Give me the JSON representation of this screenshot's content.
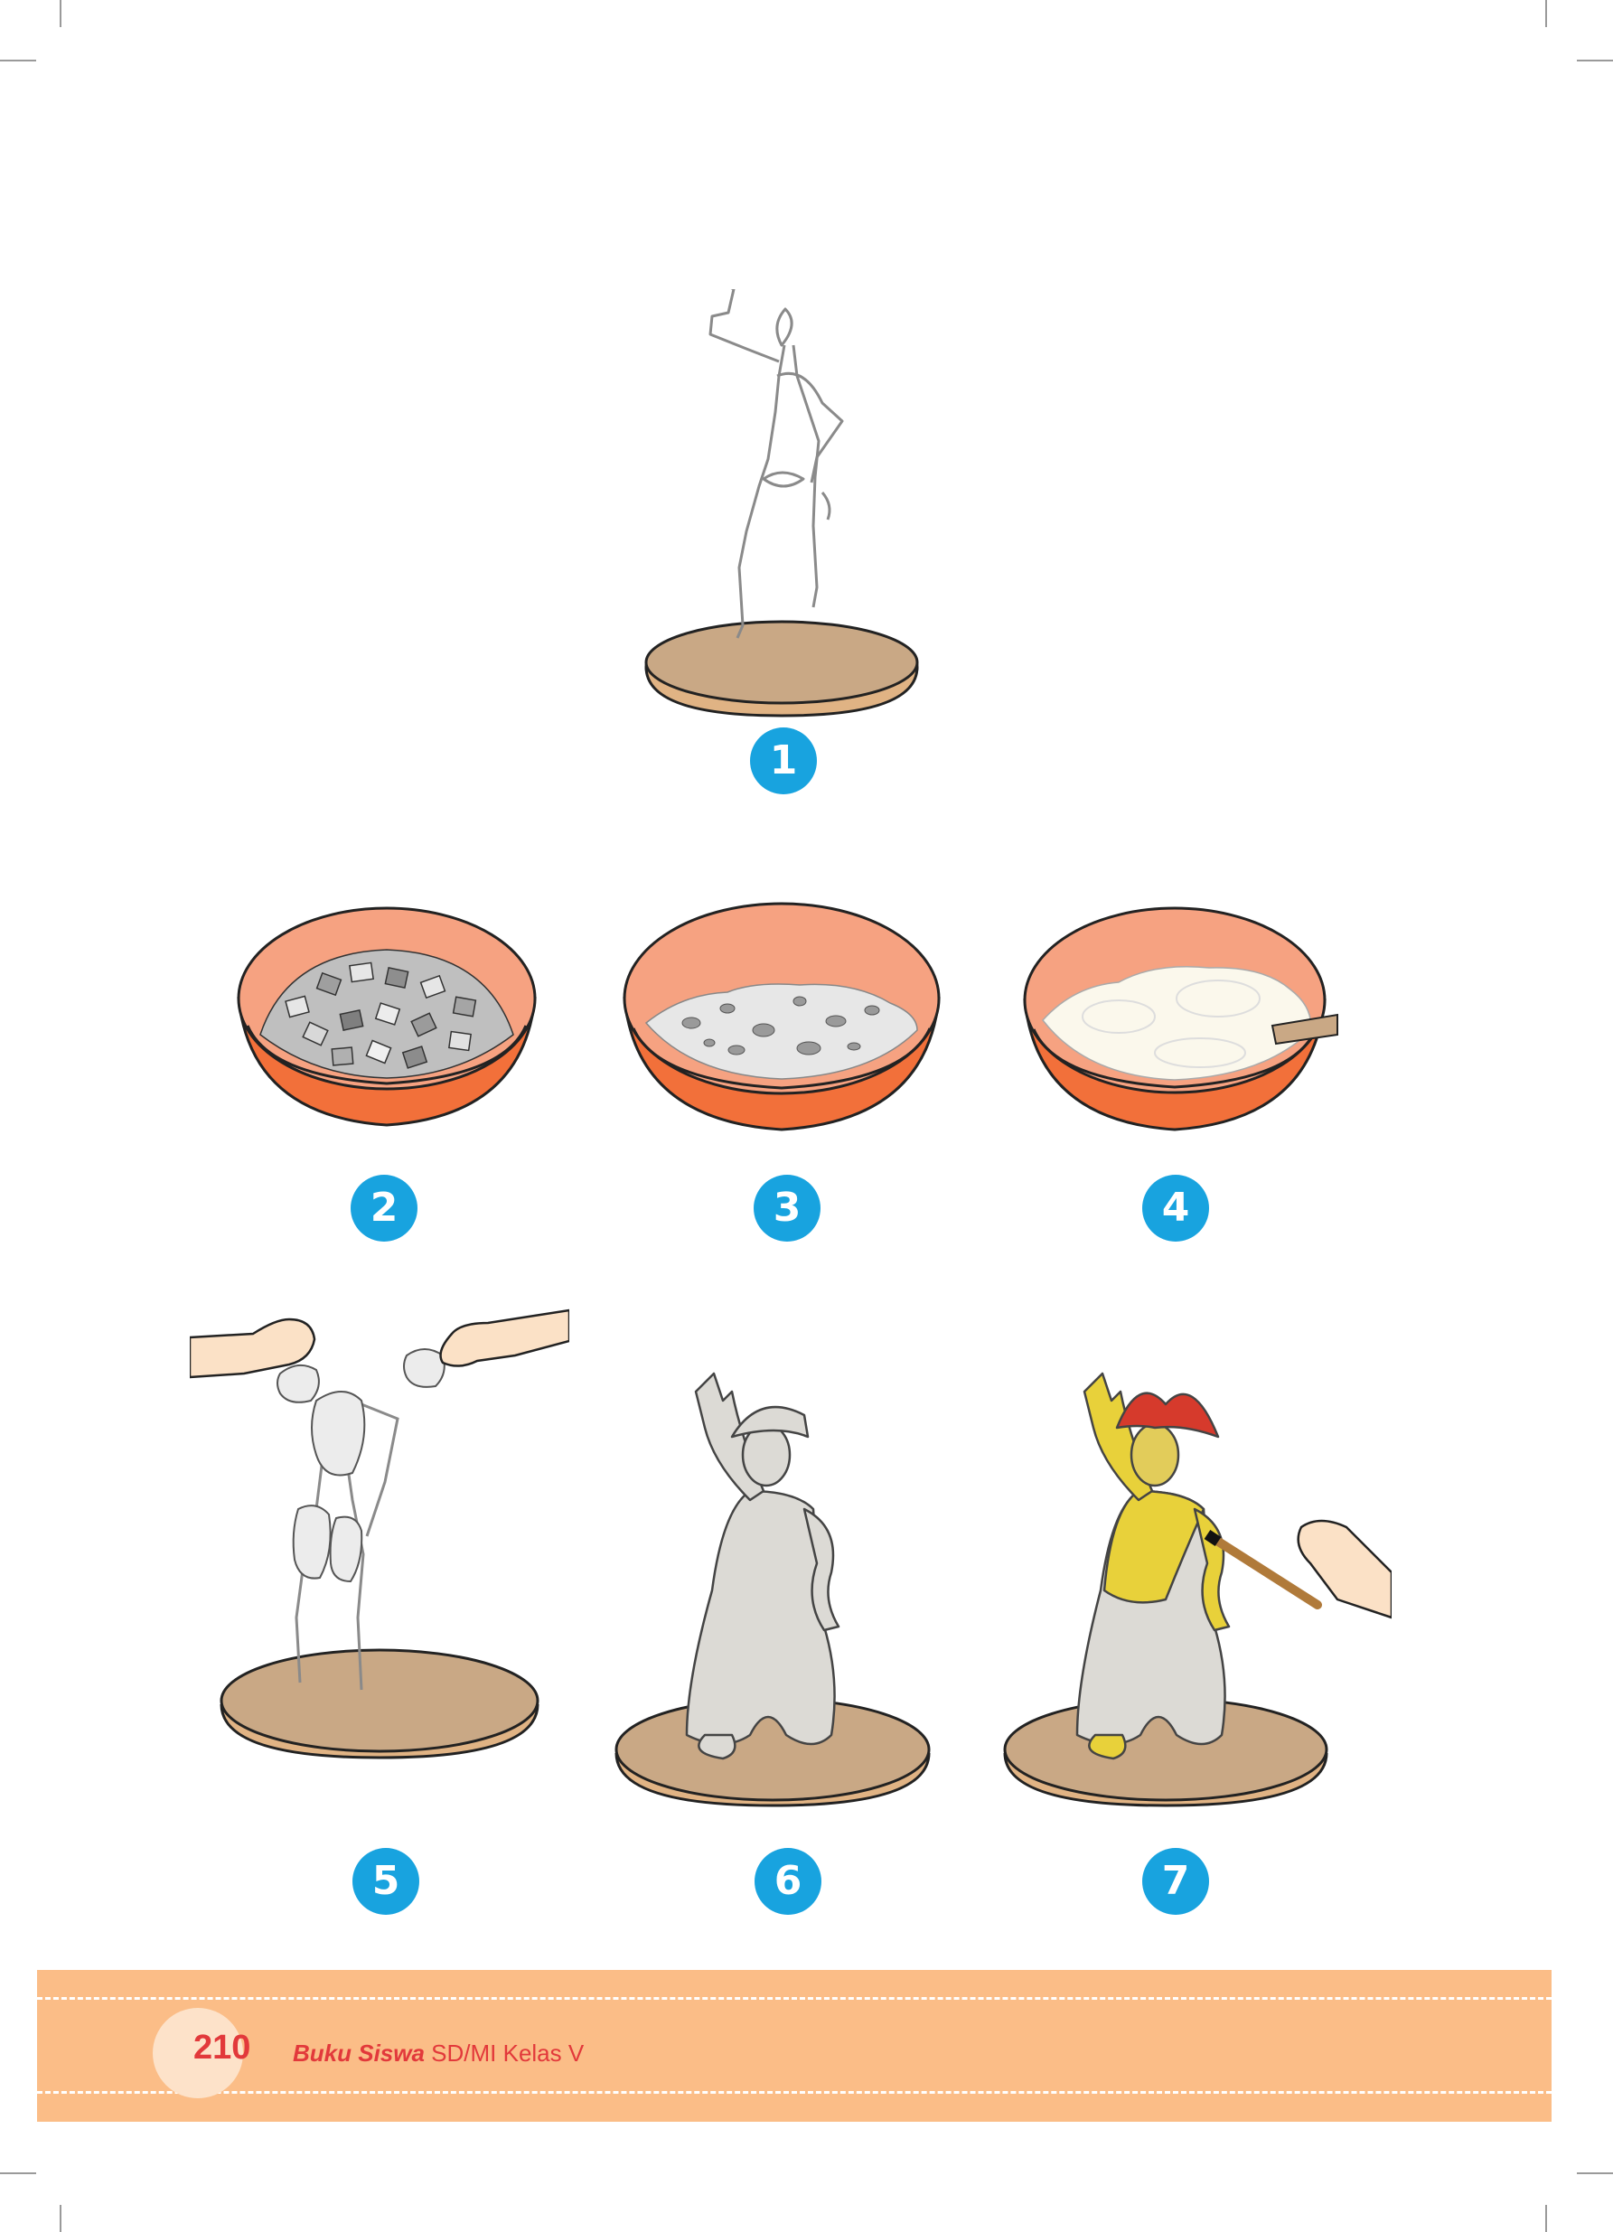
{
  "steps": [
    {
      "number": "1",
      "subject": "wire-frame-figure-on-base"
    },
    {
      "number": "2",
      "subject": "bowl-of-torn-paper"
    },
    {
      "number": "3",
      "subject": "bowl-of-soaked-paper"
    },
    {
      "number": "4",
      "subject": "bowl-of-paper-pulp"
    },
    {
      "number": "5",
      "subject": "hands-applying-pulp-to-frame"
    },
    {
      "number": "6",
      "subject": "unpainted-dancer-statue"
    },
    {
      "number": "7",
      "subject": "painting-dancer-statue"
    }
  ],
  "footer": {
    "page_number": "210",
    "book_title_bold": "Buku Siswa",
    "book_title_rest": " SD/MI Kelas V"
  },
  "colors": {
    "badge": "#18a3df",
    "bowl_inner": "#f6a281",
    "bowl_outer": "#f2703a",
    "base": "#c9a885",
    "footer_band": "#fbbd87",
    "footer_text": "#e2393b",
    "paint_yellow": "#e8d13a",
    "hat_red": "#d63a2c"
  }
}
